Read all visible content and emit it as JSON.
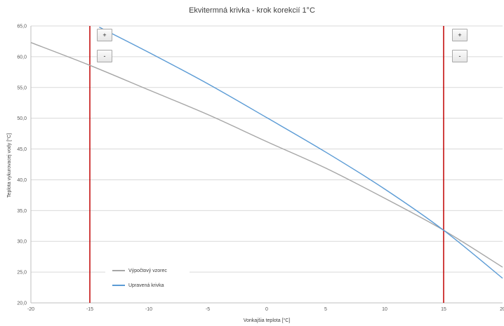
{
  "chart_data": {
    "type": "line",
    "title": "Ekvitermná krivka - krok korekcií 1°C",
    "xlabel": "Vonkajšia teplota [°C]",
    "ylabel": "Teplota vykurovacej vody [°C]",
    "xlim": [
      -20,
      20
    ],
    "ylim": [
      20,
      65
    ],
    "x_ticks": [
      "-20",
      "-15",
      "-10",
      "-5",
      "0",
      "5",
      "10",
      "15",
      "20"
    ],
    "y_ticks": [
      "20,0",
      "25,0",
      "30,0",
      "35,0",
      "40,0",
      "45,0",
      "50,0",
      "55,0",
      "60,0",
      "65,0"
    ],
    "grid": "horizontal",
    "legend_position": "bottom-left",
    "vertical_markers": [
      {
        "x": -15,
        "color": "#c00000"
      },
      {
        "x": 15,
        "color": "#c00000"
      }
    ],
    "series": [
      {
        "name": "Výpočtový vzorec",
        "color": "#a6a6a6",
        "x": [
          -20,
          -15,
          -10,
          -5,
          0,
          5,
          10,
          15,
          20
        ],
        "y": [
          62.3,
          58.6,
          54.6,
          50.6,
          46.2,
          41.9,
          37.0,
          31.8,
          25.8
        ]
      },
      {
        "name": "Upravená krivka",
        "color": "#5b9bd5",
        "x": [
          -14.2,
          -10,
          -5,
          0,
          5,
          10,
          15,
          20
        ],
        "y": [
          64.8,
          60.7,
          55.6,
          50.1,
          44.5,
          38.5,
          31.8,
          24.0
        ]
      }
    ]
  },
  "controls": {
    "left_plus": "+",
    "left_minus": "-",
    "right_plus": "+",
    "right_minus": "-"
  }
}
